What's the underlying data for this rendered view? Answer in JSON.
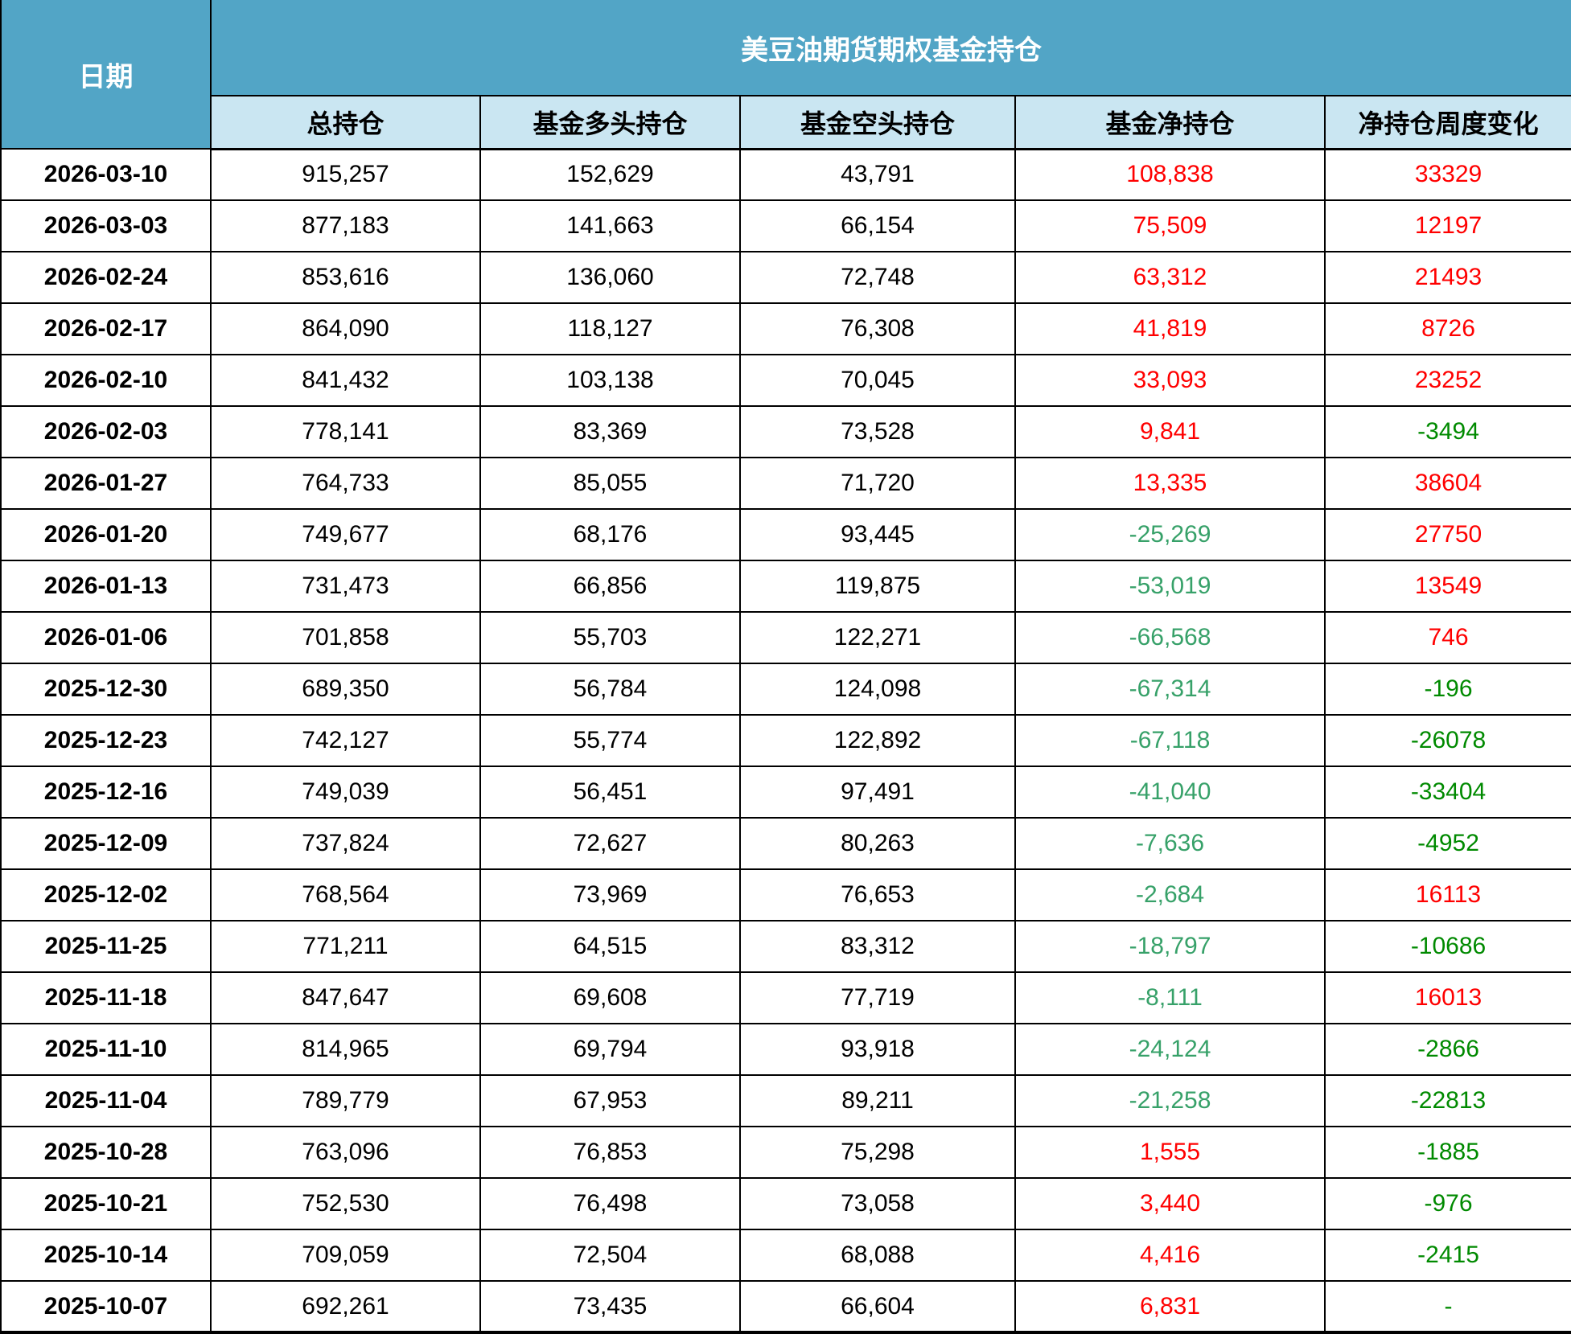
{
  "table": {
    "date_header": "日期",
    "title": "美豆油期货期权基金持仓",
    "columns": [
      "总持仓",
      "基金多头持仓",
      "基金空头持仓",
      "基金净持仓",
      "净持仓周度变化"
    ],
    "rows": [
      {
        "date": "2026-03-10",
        "total": "915,257",
        "long": "152,629",
        "short": "43,791",
        "net": "108,838",
        "chg": "33329"
      },
      {
        "date": "2026-03-03",
        "total": "877,183",
        "long": "141,663",
        "short": "66,154",
        "net": "75,509",
        "chg": "12197"
      },
      {
        "date": "2026-02-24",
        "total": "853,616",
        "long": "136,060",
        "short": "72,748",
        "net": "63,312",
        "chg": "21493"
      },
      {
        "date": "2026-02-17",
        "total": "864,090",
        "long": "118,127",
        "short": "76,308",
        "net": "41,819",
        "chg": "8726"
      },
      {
        "date": "2026-02-10",
        "total": "841,432",
        "long": "103,138",
        "short": "70,045",
        "net": "33,093",
        "chg": "23252"
      },
      {
        "date": "2026-02-03",
        "total": "778,141",
        "long": "83,369",
        "short": "73,528",
        "net": "9,841",
        "chg": "-3494"
      },
      {
        "date": "2026-01-27",
        "total": "764,733",
        "long": "85,055",
        "short": "71,720",
        "net": "13,335",
        "chg": "38604"
      },
      {
        "date": "2026-01-20",
        "total": "749,677",
        "long": "68,176",
        "short": "93,445",
        "net": "-25,269",
        "chg": "27750"
      },
      {
        "date": "2026-01-13",
        "total": "731,473",
        "long": "66,856",
        "short": "119,875",
        "net": "-53,019",
        "chg": "13549"
      },
      {
        "date": "2026-01-06",
        "total": "701,858",
        "long": "55,703",
        "short": "122,271",
        "net": "-66,568",
        "chg": "746"
      },
      {
        "date": "2025-12-30",
        "total": "689,350",
        "long": "56,784",
        "short": "124,098",
        "net": "-67,314",
        "chg": "-196"
      },
      {
        "date": "2025-12-23",
        "total": "742,127",
        "long": "55,774",
        "short": "122,892",
        "net": "-67,118",
        "chg": "-26078"
      },
      {
        "date": "2025-12-16",
        "total": "749,039",
        "long": "56,451",
        "short": "97,491",
        "net": "-41,040",
        "chg": "-33404"
      },
      {
        "date": "2025-12-09",
        "total": "737,824",
        "long": "72,627",
        "short": "80,263",
        "net": "-7,636",
        "chg": "-4952"
      },
      {
        "date": "2025-12-02",
        "total": "768,564",
        "long": "73,969",
        "short": "76,653",
        "net": "-2,684",
        "chg": "16113"
      },
      {
        "date": "2025-11-25",
        "total": "771,211",
        "long": "64,515",
        "short": "83,312",
        "net": "-18,797",
        "chg": "-10686"
      },
      {
        "date": "2025-11-18",
        "total": "847,647",
        "long": "69,608",
        "short": "77,719",
        "net": "-8,111",
        "chg": "16013"
      },
      {
        "date": "2025-11-10",
        "total": "814,965",
        "long": "69,794",
        "short": "93,918",
        "net": "-24,124",
        "chg": "-2866"
      },
      {
        "date": "2025-11-04",
        "total": "789,779",
        "long": "67,953",
        "short": "89,211",
        "net": "-21,258",
        "chg": "-22813"
      },
      {
        "date": "2025-10-28",
        "total": "763,096",
        "long": "76,853",
        "short": "75,298",
        "net": "1,555",
        "chg": "-1885"
      },
      {
        "date": "2025-10-21",
        "total": "752,530",
        "long": "76,498",
        "short": "73,058",
        "net": "3,440",
        "chg": "-976"
      },
      {
        "date": "2025-10-14",
        "total": "709,059",
        "long": "72,504",
        "short": "68,088",
        "net": "4,416",
        "chg": "-2415"
      },
      {
        "date": "2025-10-07",
        "total": "692,261",
        "long": "73,435",
        "short": "66,604",
        "net": "6,831",
        "chg": "-"
      }
    ]
  },
  "colors": {
    "header-bg": "#52A5C6",
    "header-text": "#FFFFFF",
    "subheader-bg": "#CAE6F2",
    "subheader-text": "#000000",
    "positive": "#FF0000",
    "net-negative": "#37A169",
    "chg-negative": "#008A00",
    "border": "#000000",
    "row-bg": "#FFFFFF",
    "text": "#000000"
  }
}
